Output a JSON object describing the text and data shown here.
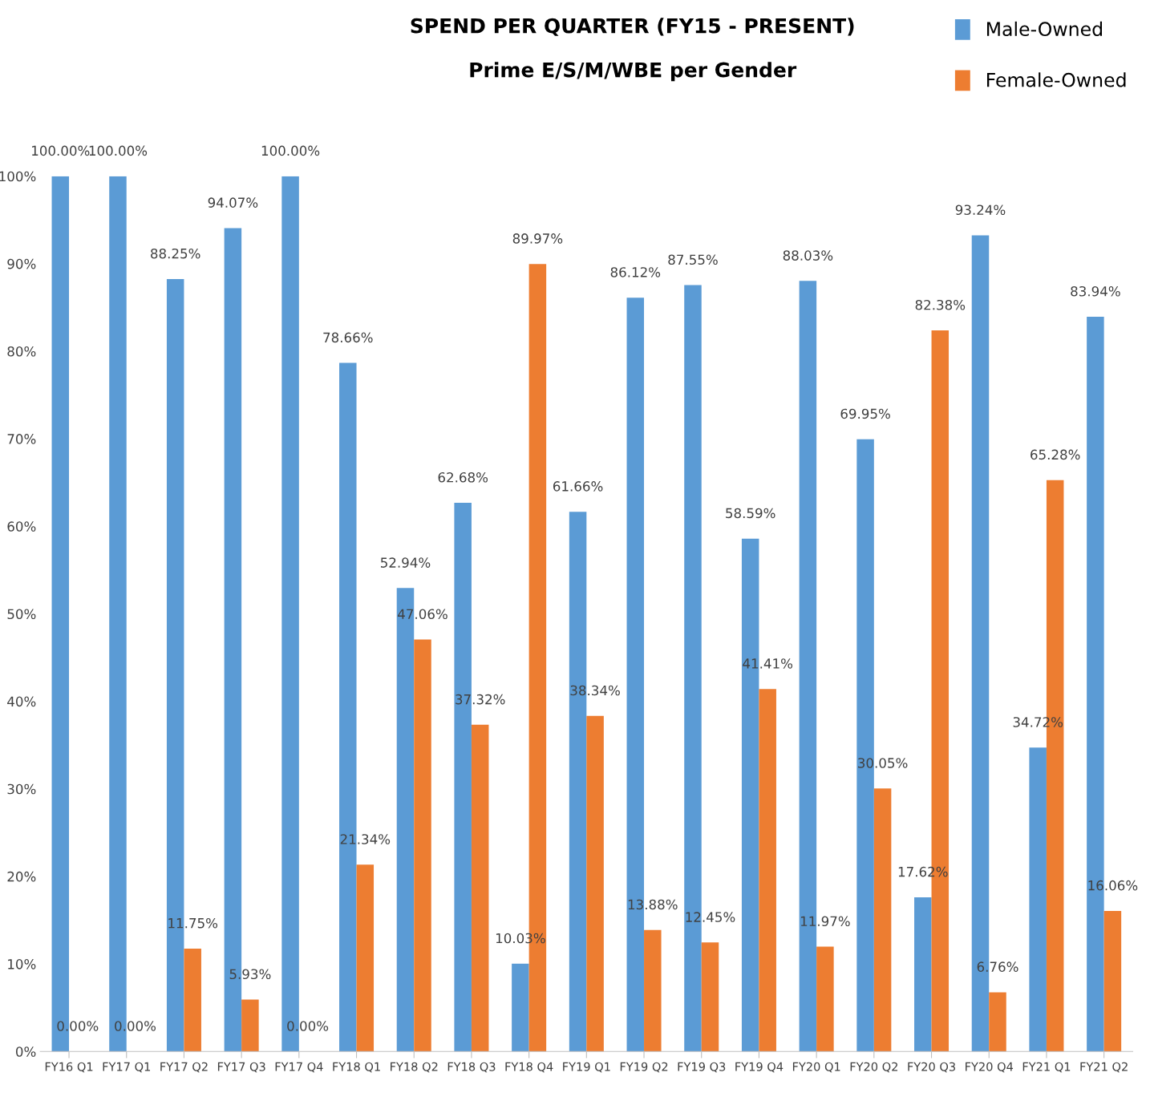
{
  "chart_data": {
    "type": "bar",
    "title": "SPEND PER QUARTER (FY15 - PRESENT)",
    "subtitle": "Prime E/S/M/WBE per Gender",
    "categories": [
      "FY16 Q1",
      "FY17 Q1",
      "FY17 Q2",
      "FY17 Q3",
      "FY17 Q4",
      "FY18 Q1",
      "FY18 Q2",
      "FY18 Q3",
      "FY18 Q4",
      "FY19 Q1",
      "FY19 Q2",
      "FY19 Q3",
      "FY19 Q4",
      "FY20 Q1",
      "FY20 Q2",
      "FY20 Q3",
      "FY20 Q4",
      "FY21 Q1",
      "FY21 Q2"
    ],
    "series": [
      {
        "name": "Male-Owned",
        "color": "#5b9bd5",
        "values": [
          100,
          100,
          88.25,
          94.07,
          100,
          78.66,
          52.94,
          62.68,
          10.03,
          61.66,
          86.12,
          87.55,
          58.59,
          88.03,
          69.95,
          17.62,
          93.24,
          34.72,
          83.94
        ],
        "value_labels": [
          "100.00%",
          "100.00%",
          "88.25%",
          "94.07%",
          "100.00%",
          "78.66%",
          "52.94%",
          "62.68%",
          "10.03%",
          "61.66%",
          "86.12%",
          "87.55%",
          "58.59%",
          "88.03%",
          "69.95%",
          "17.62%",
          "93.24%",
          "34.72%",
          "83.94%"
        ]
      },
      {
        "name": "Female-Owned",
        "color": "#ed7d31",
        "values": [
          0,
          0,
          11.75,
          5.93,
          0,
          21.34,
          47.06,
          37.32,
          89.97,
          38.34,
          13.88,
          12.45,
          41.41,
          11.97,
          30.05,
          82.38,
          6.76,
          65.28,
          16.06
        ],
        "value_labels": [
          "0.00%",
          "0.00%",
          "11.75%",
          "5.93%",
          "0.00%",
          "21.34%",
          "47.06%",
          "37.32%",
          "89.97%",
          "38.34%",
          "13.88%",
          "12.45%",
          "41.41%",
          "11.97%",
          "30.05%",
          "82.38%",
          "6.76%",
          "65.28%",
          "16.06%"
        ]
      }
    ],
    "ylim": [
      0,
      100
    ],
    "yticks": [
      {
        "value": 0,
        "label": "0%"
      },
      {
        "value": 10,
        "label": "10%"
      },
      {
        "value": 20,
        "label": "20%"
      },
      {
        "value": 30,
        "label": "30%"
      },
      {
        "value": 40,
        "label": "40%"
      },
      {
        "value": 50,
        "label": "50%"
      },
      {
        "value": 60,
        "label": "60%"
      },
      {
        "value": 70,
        "label": "70%"
      },
      {
        "value": 80,
        "label": "80%"
      },
      {
        "value": 90,
        "label": "90%"
      },
      {
        "value": 100,
        "label": "100%"
      }
    ],
    "grid": false,
    "legend": "top right"
  }
}
